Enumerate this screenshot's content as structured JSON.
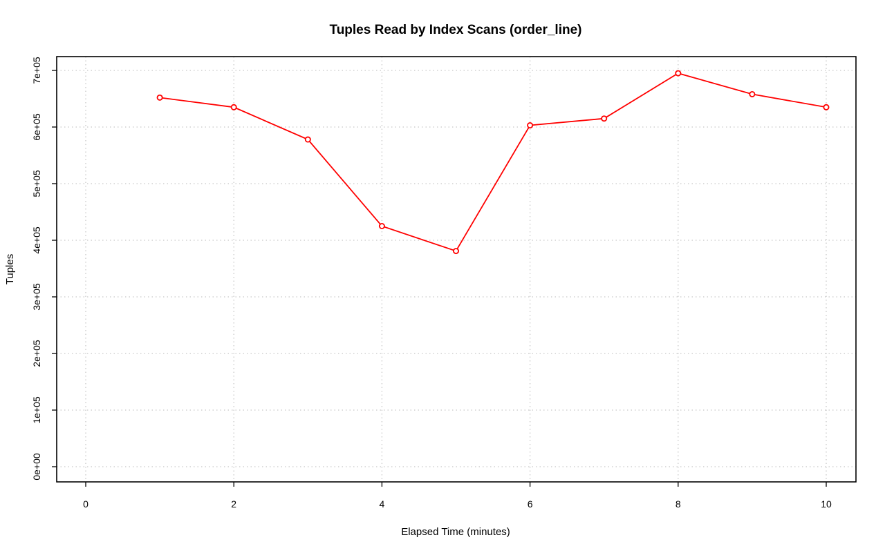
{
  "chart_data": {
    "type": "line",
    "title": "Tuples Read by Index Scans (order_line)",
    "xlabel": "Elapsed Time (minutes)",
    "ylabel": "Tuples",
    "xlim": [
      0,
      10
    ],
    "ylim": [
      0,
      700000
    ],
    "x_ticks": [
      0,
      2,
      4,
      6,
      8,
      10
    ],
    "x_tick_labels": [
      "0",
      "2",
      "4",
      "6",
      "8",
      "10"
    ],
    "y_ticks": [
      0,
      100000,
      200000,
      300000,
      400000,
      500000,
      600000,
      700000
    ],
    "y_tick_labels": [
      "0e+00",
      "1e+05",
      "2e+05",
      "3e+05",
      "4e+05",
      "5e+05",
      "6e+05",
      "7e+05"
    ],
    "grid": true,
    "series": [
      {
        "color": "#ff0000",
        "marker": "open-circle",
        "x": [
          1,
          2,
          3,
          4,
          5,
          6,
          7,
          8,
          9,
          10
        ],
        "y": [
          652000,
          635000,
          578000,
          425000,
          381000,
          603000,
          615000,
          695000,
          658000,
          635000
        ]
      }
    ]
  }
}
